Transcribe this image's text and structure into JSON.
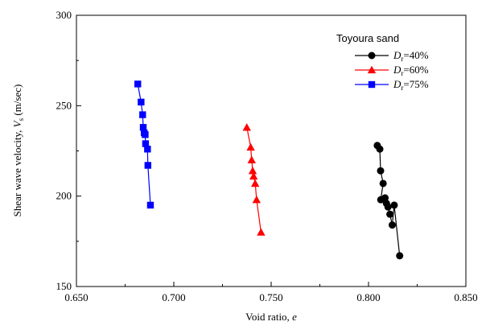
{
  "chart_data": {
    "type": "scatter",
    "title": "",
    "xlabel_text": "Void ratio, ",
    "xlabel_var": "e",
    "ylabel_text": "Shear wave velocity,  ",
    "ylabel_var": "V",
    "ylabel_sub": "s",
    "ylabel_unit": "  (m/sec)",
    "xlim": [
      0.65,
      0.85
    ],
    "ylim": [
      150,
      300
    ],
    "x_ticks": [
      0.65,
      0.7,
      0.75,
      0.8,
      0.85
    ],
    "x_tick_labels": [
      "0.650",
      "0.700",
      "0.750",
      "0.800",
      "0.850"
    ],
    "y_ticks": [
      150,
      200,
      250,
      300
    ],
    "y_tick_labels": [
      "150",
      "200",
      "250",
      "300"
    ],
    "grid": false,
    "legend_position": "top-right",
    "legend_title": "Toyoura sand",
    "series": [
      {
        "name_var": "D",
        "name_sub": "r",
        "name_value": "=40%",
        "color": "#000000",
        "marker": "circle",
        "x": [
          0.8045,
          0.8058,
          0.8062,
          0.8075,
          0.8063,
          0.8085,
          0.8092,
          0.81,
          0.811,
          0.8122,
          0.8132,
          0.816
        ],
        "y": [
          228,
          226,
          214,
          207,
          198,
          199,
          196,
          194,
          190,
          184,
          195,
          167
        ]
      },
      {
        "name_var": "D",
        "name_sub": "r",
        "name_value": "=60%",
        "color": "#ff0000",
        "marker": "triangle",
        "x": [
          0.7375,
          0.7395,
          0.74,
          0.7405,
          0.741,
          0.7418,
          0.7425,
          0.7448
        ],
        "y": [
          238,
          227,
          220,
          214,
          211,
          207,
          198,
          180
        ]
      },
      {
        "name_var": "D",
        "name_sub": "r",
        "name_value": "=75%",
        "color": "#0000ff",
        "marker": "square",
        "x": [
          0.6815,
          0.6832,
          0.684,
          0.6843,
          0.6848,
          0.6853,
          0.6855,
          0.6865,
          0.6867,
          0.688
        ],
        "y": [
          262,
          252,
          245,
          238,
          235,
          234,
          229,
          226,
          217,
          195
        ]
      }
    ]
  }
}
